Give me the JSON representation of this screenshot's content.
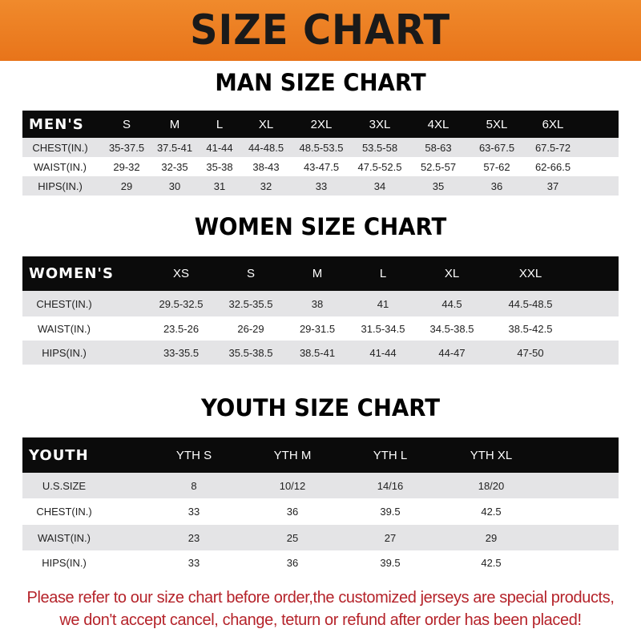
{
  "banner_title": "SIZE CHART",
  "men": {
    "title": "MAN SIZE CHART",
    "header": [
      "MEN'S",
      "S",
      "M",
      "L",
      "XL",
      "2XL",
      "3XL",
      "4XL",
      "5XL",
      "6XL"
    ],
    "rows": [
      [
        "CHEST(IN.)",
        "35-37.5",
        "37.5-41",
        "41-44",
        "44-48.5",
        "48.5-53.5",
        "53.5-58",
        "58-63",
        "63-67.5",
        "67.5-72"
      ],
      [
        "WAIST(IN.)",
        "29-32",
        "32-35",
        "35-38",
        "38-43",
        "43-47.5",
        "47.5-52.5",
        "52.5-57",
        "57-62",
        "62-66.5"
      ],
      [
        "HIPS(IN.)",
        "29",
        "30",
        "31",
        "32",
        "33",
        "34",
        "35",
        "36",
        "37"
      ]
    ]
  },
  "women": {
    "title": "WOMEN SIZE CHART",
    "header": [
      "WOMEN'S",
      "XS",
      "S",
      "M",
      "L",
      "XL",
      "XXL"
    ],
    "rows": [
      [
        "CHEST(IN.)",
        "29.5-32.5",
        "32.5-35.5",
        "38",
        "41",
        "44.5",
        "44.5-48.5"
      ],
      [
        "WAIST(IN.)",
        "23.5-26",
        "26-29",
        "29-31.5",
        "31.5-34.5",
        "34.5-38.5",
        "38.5-42.5"
      ],
      [
        "HIPS(IN.)",
        "33-35.5",
        "35.5-38.5",
        "38.5-41",
        "41-44",
        "44-47",
        "47-50"
      ]
    ]
  },
  "youth": {
    "title": "YOUTH SIZE CHART",
    "header": [
      "YOUTH",
      "YTH S",
      "YTH M",
      "YTH L",
      "YTH XL"
    ],
    "rows": [
      [
        "U.S.SIZE",
        "8",
        "10/12",
        "14/16",
        "18/20"
      ],
      [
        "CHEST(IN.)",
        "33",
        "36",
        "39.5",
        "42.5"
      ],
      [
        "WAIST(IN.)",
        "23",
        "25",
        "27",
        "29"
      ],
      [
        "HIPS(IN.)",
        "33",
        "36",
        "39.5",
        "42.5"
      ]
    ]
  },
  "footer": {
    "line1": "Please refer to our size chart before order,the customized jerseys are special products,",
    "line2": "we don't accept cancel, change, teturn or refund after order has been placed!"
  },
  "colors": {
    "banner": "#ee7f25",
    "header_row": "#0b0b0b",
    "stripe": "#e4e4e6",
    "footer_text": "#b5232a"
  }
}
